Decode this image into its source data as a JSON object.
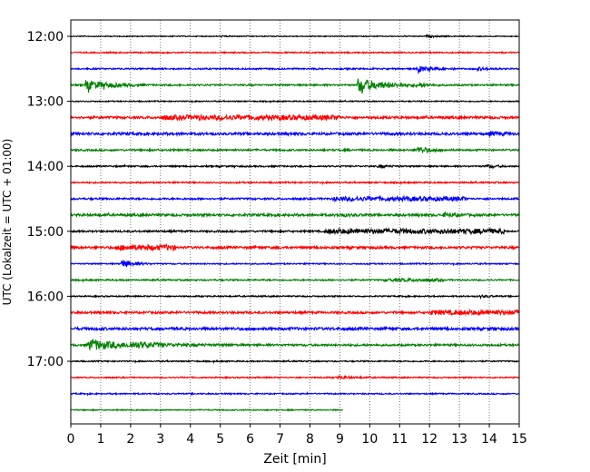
{
  "chart_data": {
    "type": "line",
    "subtype": "helicorder",
    "title": "",
    "xlabel": "Zeit  [min]",
    "ylabel": "UTC (Lokalzeit = UTC + 01:00)",
    "xlim": [
      0,
      15
    ],
    "x_ticks": [
      "0",
      "1",
      "2",
      "3",
      "4",
      "5",
      "6",
      "7",
      "8",
      "9",
      "10",
      "11",
      "12",
      "13",
      "14",
      "15"
    ],
    "y_tick_labels": [
      "12:00",
      "13:00",
      "14:00",
      "15:00",
      "16:00",
      "17:00"
    ],
    "y_tick_rows": [
      0,
      4,
      8,
      12,
      16,
      20
    ],
    "grid_x": true,
    "colors": [
      "#000000",
      "#ff0000",
      "#0000ff",
      "#008000"
    ],
    "rows": [
      {
        "start": "12:00",
        "color": "#000000",
        "noise": 0.5,
        "end": 15,
        "events": [
          {
            "t": 11.9,
            "a": 1.2,
            "d": 0.3
          },
          {
            "t": 5.0,
            "a": 0.7,
            "d": 0.2
          }
        ]
      },
      {
        "start": "12:15",
        "color": "#ff0000",
        "noise": 0.7,
        "end": 15,
        "events": []
      },
      {
        "start": "12:30",
        "color": "#0000ff",
        "noise": 0.8,
        "end": 15,
        "events": [
          {
            "t": 11.6,
            "a": 3.0,
            "d": 0.5
          },
          {
            "t": 13.6,
            "a": 1.5,
            "d": 0.4
          }
        ]
      },
      {
        "start": "12:45",
        "color": "#008000",
        "noise": 0.9,
        "end": 15,
        "events": [
          {
            "t": 0.5,
            "a": 5.0,
            "d": 0.8
          },
          {
            "t": 9.6,
            "a": 7.5,
            "d": 0.8
          },
          {
            "t": 11.6,
            "a": 2.0,
            "d": 0.3
          }
        ]
      },
      {
        "start": "13:00",
        "color": "#000000",
        "noise": 0.6,
        "end": 15,
        "events": []
      },
      {
        "start": "13:15",
        "color": "#ff0000",
        "noise": 1.3,
        "end": 15,
        "events": [
          {
            "t": 6.0,
            "a": 1.5,
            "d": 6.0
          }
        ]
      },
      {
        "start": "13:30",
        "color": "#0000ff",
        "noise": 1.4,
        "end": 15,
        "events": [
          {
            "t": 14.0,
            "a": 2.0,
            "d": 0.4
          }
        ]
      },
      {
        "start": "13:45",
        "color": "#008000",
        "noise": 1.0,
        "end": 15,
        "events": [
          {
            "t": 11.6,
            "a": 3.5,
            "d": 0.4
          }
        ]
      },
      {
        "start": "14:00",
        "color": "#000000",
        "noise": 0.8,
        "end": 15,
        "events": [
          {
            "t": 10.3,
            "a": 1.5,
            "d": 0.3
          },
          {
            "t": 13.9,
            "a": 1.5,
            "d": 0.3
          }
        ]
      },
      {
        "start": "14:15",
        "color": "#ff0000",
        "noise": 0.8,
        "end": 15,
        "events": []
      },
      {
        "start": "14:30",
        "color": "#0000ff",
        "noise": 1.0,
        "end": 15,
        "events": [
          {
            "t": 11.0,
            "a": 1.5,
            "d": 4.5
          }
        ]
      },
      {
        "start": "14:45",
        "color": "#008000",
        "noise": 1.3,
        "end": 15,
        "events": [
          {
            "t": 12.5,
            "a": 2.0,
            "d": 0.4
          },
          {
            "t": 9.0,
            "a": 1.2,
            "d": 0.4
          }
        ]
      },
      {
        "start": "15:00",
        "color": "#000000",
        "noise": 1.0,
        "end": 15,
        "events": [
          {
            "t": 11.5,
            "a": 1.8,
            "d": 6.0
          }
        ]
      },
      {
        "start": "15:15",
        "color": "#ff0000",
        "noise": 1.3,
        "end": 15,
        "events": [
          {
            "t": 2.5,
            "a": 1.8,
            "d": 2.0
          }
        ]
      },
      {
        "start": "15:30",
        "color": "#0000ff",
        "noise": 0.7,
        "end": 15,
        "events": [
          {
            "t": 1.7,
            "a": 4.5,
            "d": 0.4
          }
        ]
      },
      {
        "start": "15:45",
        "color": "#008000",
        "noise": 0.8,
        "end": 15,
        "events": [
          {
            "t": 11.5,
            "a": 1.0,
            "d": 2.0
          }
        ]
      },
      {
        "start": "16:00",
        "color": "#000000",
        "noise": 0.7,
        "end": 15,
        "events": [
          {
            "t": 13.7,
            "a": 1.2,
            "d": 0.3
          }
        ]
      },
      {
        "start": "16:15",
        "color": "#ff0000",
        "noise": 1.2,
        "end": 15,
        "events": [
          {
            "t": 13.5,
            "a": 1.5,
            "d": 3.0
          }
        ]
      },
      {
        "start": "16:30",
        "color": "#0000ff",
        "noise": 1.5,
        "end": 15,
        "events": []
      },
      {
        "start": "16:45",
        "color": "#008000",
        "noise": 1.1,
        "end": 15,
        "events": [
          {
            "t": 0.6,
            "a": 6.0,
            "d": 1.0
          },
          {
            "t": 2.0,
            "a": 2.0,
            "d": 1.5
          }
        ]
      },
      {
        "start": "17:00",
        "color": "#000000",
        "noise": 0.7,
        "end": 15,
        "events": []
      },
      {
        "start": "17:15",
        "color": "#ff0000",
        "noise": 0.7,
        "end": 15,
        "events": [
          {
            "t": 8.9,
            "a": 1.2,
            "d": 0.5
          }
        ]
      },
      {
        "start": "17:30",
        "color": "#0000ff",
        "noise": 0.7,
        "end": 15,
        "events": []
      },
      {
        "start": "17:45",
        "color": "#008000",
        "noise": 0.6,
        "end": 9.1,
        "events": []
      }
    ]
  }
}
